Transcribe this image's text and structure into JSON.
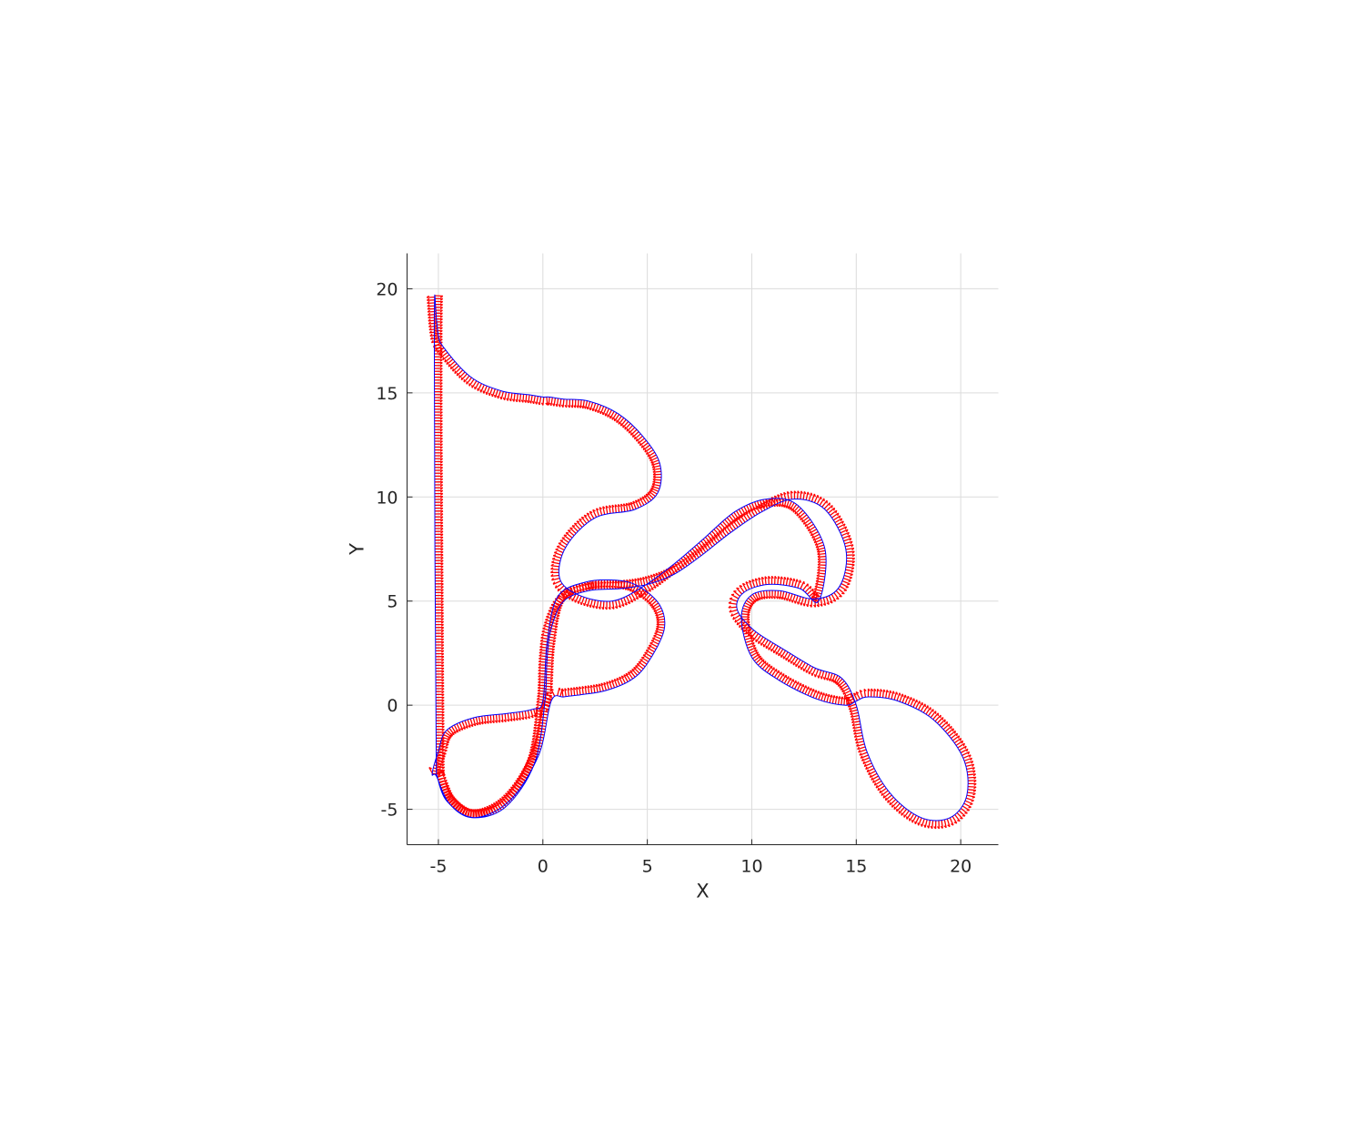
{
  "chart_data": {
    "type": "line",
    "title": "",
    "xlabel": "X",
    "ylabel": "Y",
    "xlim": [
      -6.5,
      21.8
    ],
    "ylim": [
      -6.7,
      21.7
    ],
    "xticks": [
      -5,
      0,
      5,
      10,
      15,
      20
    ],
    "yticks": [
      -5,
      0,
      5,
      10,
      15,
      20
    ],
    "xtick_labels": [
      "-5",
      "0",
      "5",
      "10",
      "15",
      "20"
    ],
    "ytick_labels": [
      "-5",
      "0",
      "5",
      "10",
      "15",
      "20"
    ],
    "grid": true,
    "aspect": "equal",
    "colors": {
      "path": "#0000ff",
      "quiver": "#ff0000",
      "grid": "#dcdcdc",
      "axis": "#262626"
    },
    "series": [
      {
        "type": "line",
        "color": "#0000ff",
        "x": [
          -5.1,
          -4.6,
          -3.3,
          -1.6,
          -0.2,
          0.4,
          1.0,
          1.8,
          3.0,
          4.2,
          5.0,
          5.8,
          5.6,
          4.6,
          3.5,
          2.0,
          0.7,
          0.2,
          0.0,
          -0.5,
          -1.7,
          -3.3,
          -4.6,
          -5.0,
          -5.3,
          -5.1,
          -4.5,
          -3.4,
          -1.8,
          -0.4,
          0.1,
          0.2,
          0.4,
          1.0,
          2.2,
          3.7,
          5.0,
          6.3,
          7.6,
          9.0,
          10.5,
          12.0,
          13.5,
          14.5,
          14.2,
          13.0,
          11.3,
          10.0,
          9.5,
          10.0,
          11.3,
          13.1,
          14.5,
          15.0,
          15.6,
          17.0,
          18.7,
          20.1,
          20.3,
          19.5,
          18.1,
          16.6,
          15.5,
          15.0,
          14.3,
          13.0,
          11.5,
          10.1,
          9.3,
          9.6,
          10.8,
          12.3,
          13.2,
          13.5,
          12.2,
          10.7,
          9.2,
          7.7,
          6.3,
          4.8,
          3.3,
          1.7,
          0.8,
          1.1,
          2.5,
          4.4,
          5.5,
          5.6,
          4.8,
          3.6,
          2.2,
          1.0,
          0.3,
          0.0,
          -0.6,
          -2.0,
          -3.5,
          -4.9,
          -5.2,
          -5.1
        ],
        "y": [
          -3.3,
          -4.6,
          -5.4,
          -4.6,
          -2.4,
          0.2,
          0.4,
          0.5,
          0.7,
          1.2,
          2.0,
          3.6,
          4.8,
          5.7,
          6.0,
          5.9,
          5.2,
          3.0,
          0.2,
          -0.2,
          -0.4,
          -0.6,
          -1.2,
          -2.2,
          -3.3,
          -3.4,
          -4.7,
          -5.4,
          -4.9,
          -2.8,
          0.2,
          2.2,
          3.7,
          5.0,
          5.5,
          5.6,
          5.8,
          6.3,
          7.2,
          8.3,
          9.3,
          9.9,
          9.4,
          7.5,
          5.7,
          5.1,
          5.5,
          5.3,
          4.2,
          2.3,
          1.2,
          0.3,
          0.0,
          0.2,
          0.4,
          0.2,
          -0.7,
          -2.5,
          -4.3,
          -5.4,
          -5.4,
          -4.2,
          -2.2,
          0.0,
          1.3,
          1.8,
          2.7,
          3.6,
          4.6,
          5.4,
          5.8,
          5.6,
          5.0,
          7.5,
          9.6,
          9.9,
          9.3,
          8.0,
          6.8,
          5.7,
          5.0,
          5.3,
          6.1,
          7.6,
          9.0,
          9.4,
          10.2,
          11.6,
          12.9,
          14.0,
          14.6,
          14.7,
          14.8,
          14.8,
          14.9,
          15.1,
          15.8,
          17.4,
          18.3,
          -3.3
        ]
      }
    ]
  }
}
